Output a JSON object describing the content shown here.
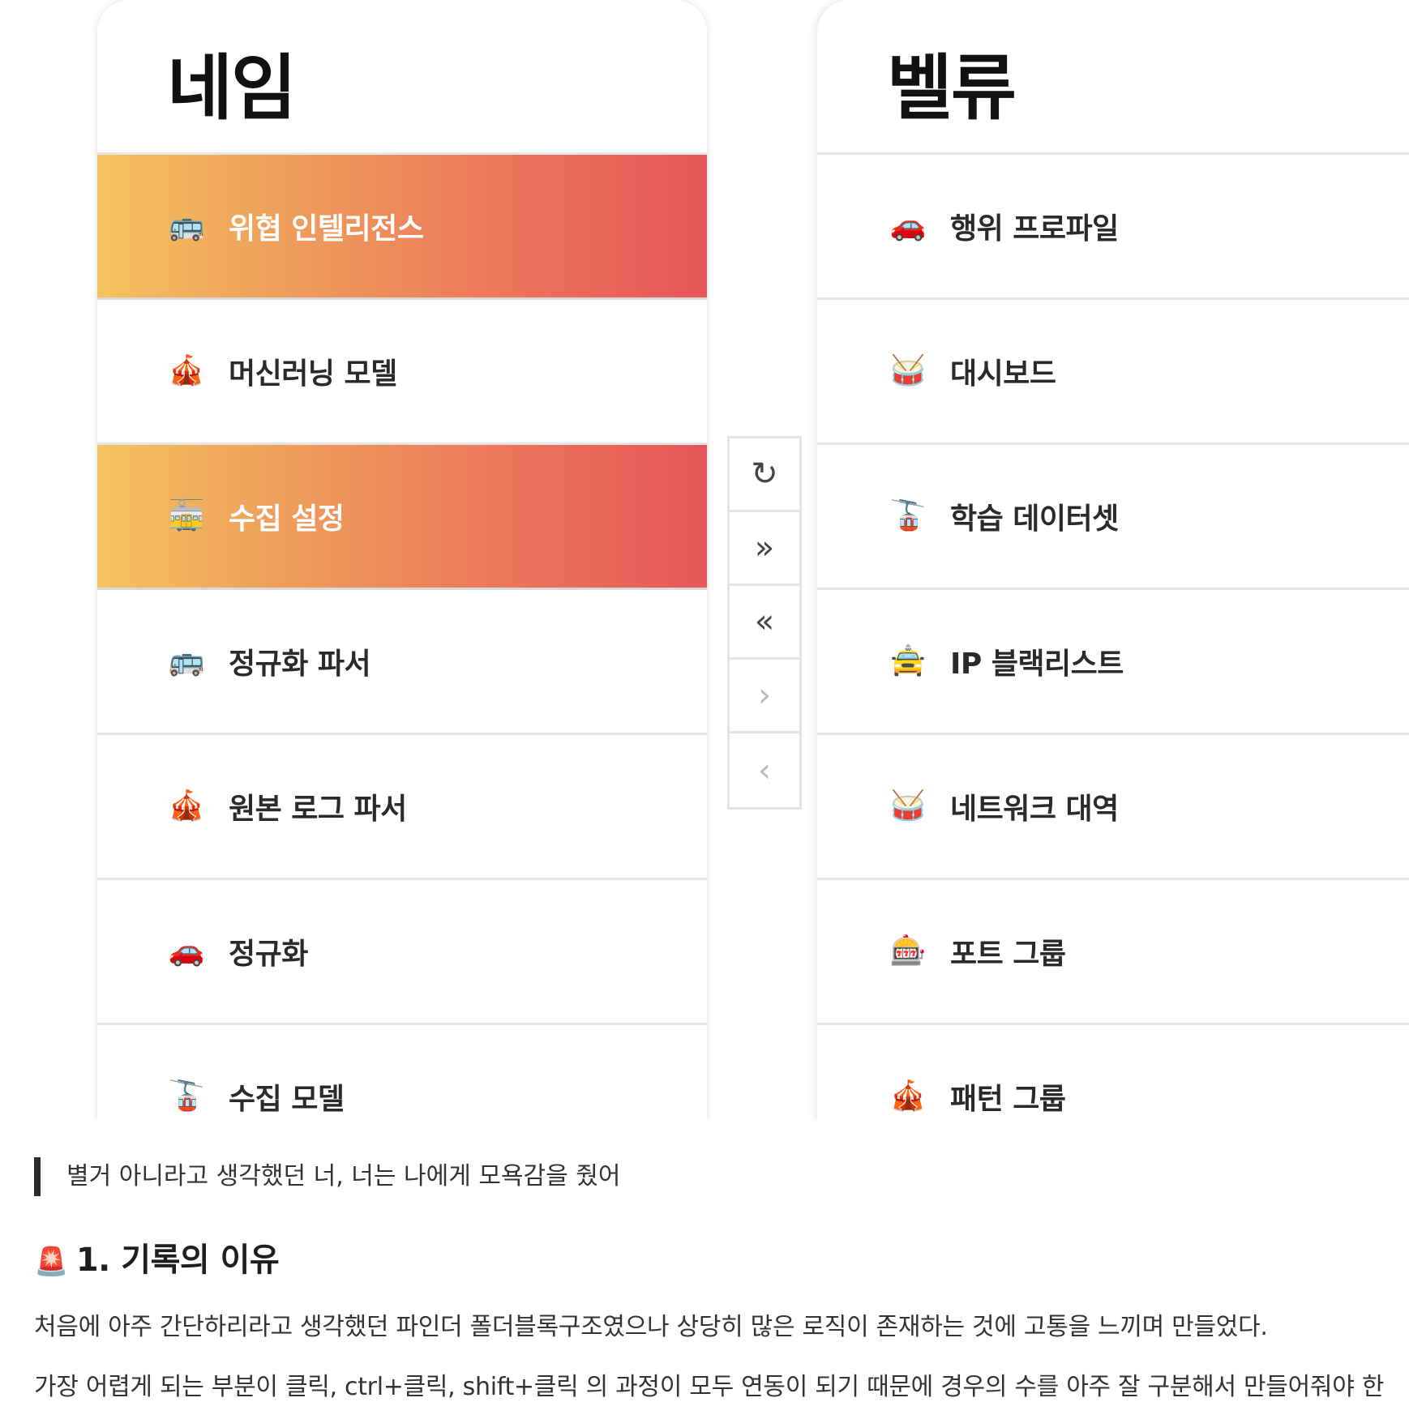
{
  "left_panel": {
    "title": "네임",
    "items": [
      {
        "icon": "🚌",
        "label": "위협 인텔리전스",
        "selected": true
      },
      {
        "icon": "🎪",
        "label": "머신러닝 모델",
        "selected": false
      },
      {
        "icon": "🚋",
        "label": "수집 설정",
        "selected": true
      },
      {
        "icon": "🚌",
        "label": "정규화 파서",
        "selected": false
      },
      {
        "icon": "🎪",
        "label": "원본 로그 파서",
        "selected": false
      },
      {
        "icon": "🚗",
        "label": "정규화",
        "selected": false
      },
      {
        "icon": "🚡",
        "label": "수집 모델",
        "selected": false
      }
    ]
  },
  "right_panel": {
    "title": "벨류",
    "items": [
      {
        "icon": "🚗",
        "label": "행위 프로파일"
      },
      {
        "icon": "🥁",
        "label": "대시보드"
      },
      {
        "icon": "🚡",
        "label": "학습 데이터셋"
      },
      {
        "icon": "🚖",
        "label": "IP 블랙리스트"
      },
      {
        "icon": "🥁",
        "label": "네트워크 대역"
      },
      {
        "icon": "🎰",
        "label": "포트 그룹"
      },
      {
        "icon": "🎪",
        "label": "패턴 그룹"
      }
    ]
  },
  "controls": {
    "reset": "↻",
    "move_all_right": "»",
    "move_all_left": "«",
    "move_right": "›",
    "move_left": "‹"
  },
  "article": {
    "quote": "별거 아니라고 생각했던 너, 너는 나에게 모욕감을 줬어",
    "heading_emoji": "🚨",
    "heading": "1. 기록의 이유",
    "paragraph1": "처음에 아주 간단하리라고 생각했던 파인더 폴더블록구조였으나 상당히 많은 로직이 존재하는 것에 고통을 느끼며 만들었다.",
    "paragraph2": "가장 어렵게 되는 부분이 클릭, ctrl+클릭, shift+클릭 의 과정이 모두 연동이 되기 때문에 경우의 수를 아주 잘 구분해서 만들어줘야 한"
  },
  "colors": {
    "selected_gradient_start": "#f5c35e",
    "selected_gradient_end": "#e8565a",
    "quote_bar": "#2b2b2b"
  }
}
